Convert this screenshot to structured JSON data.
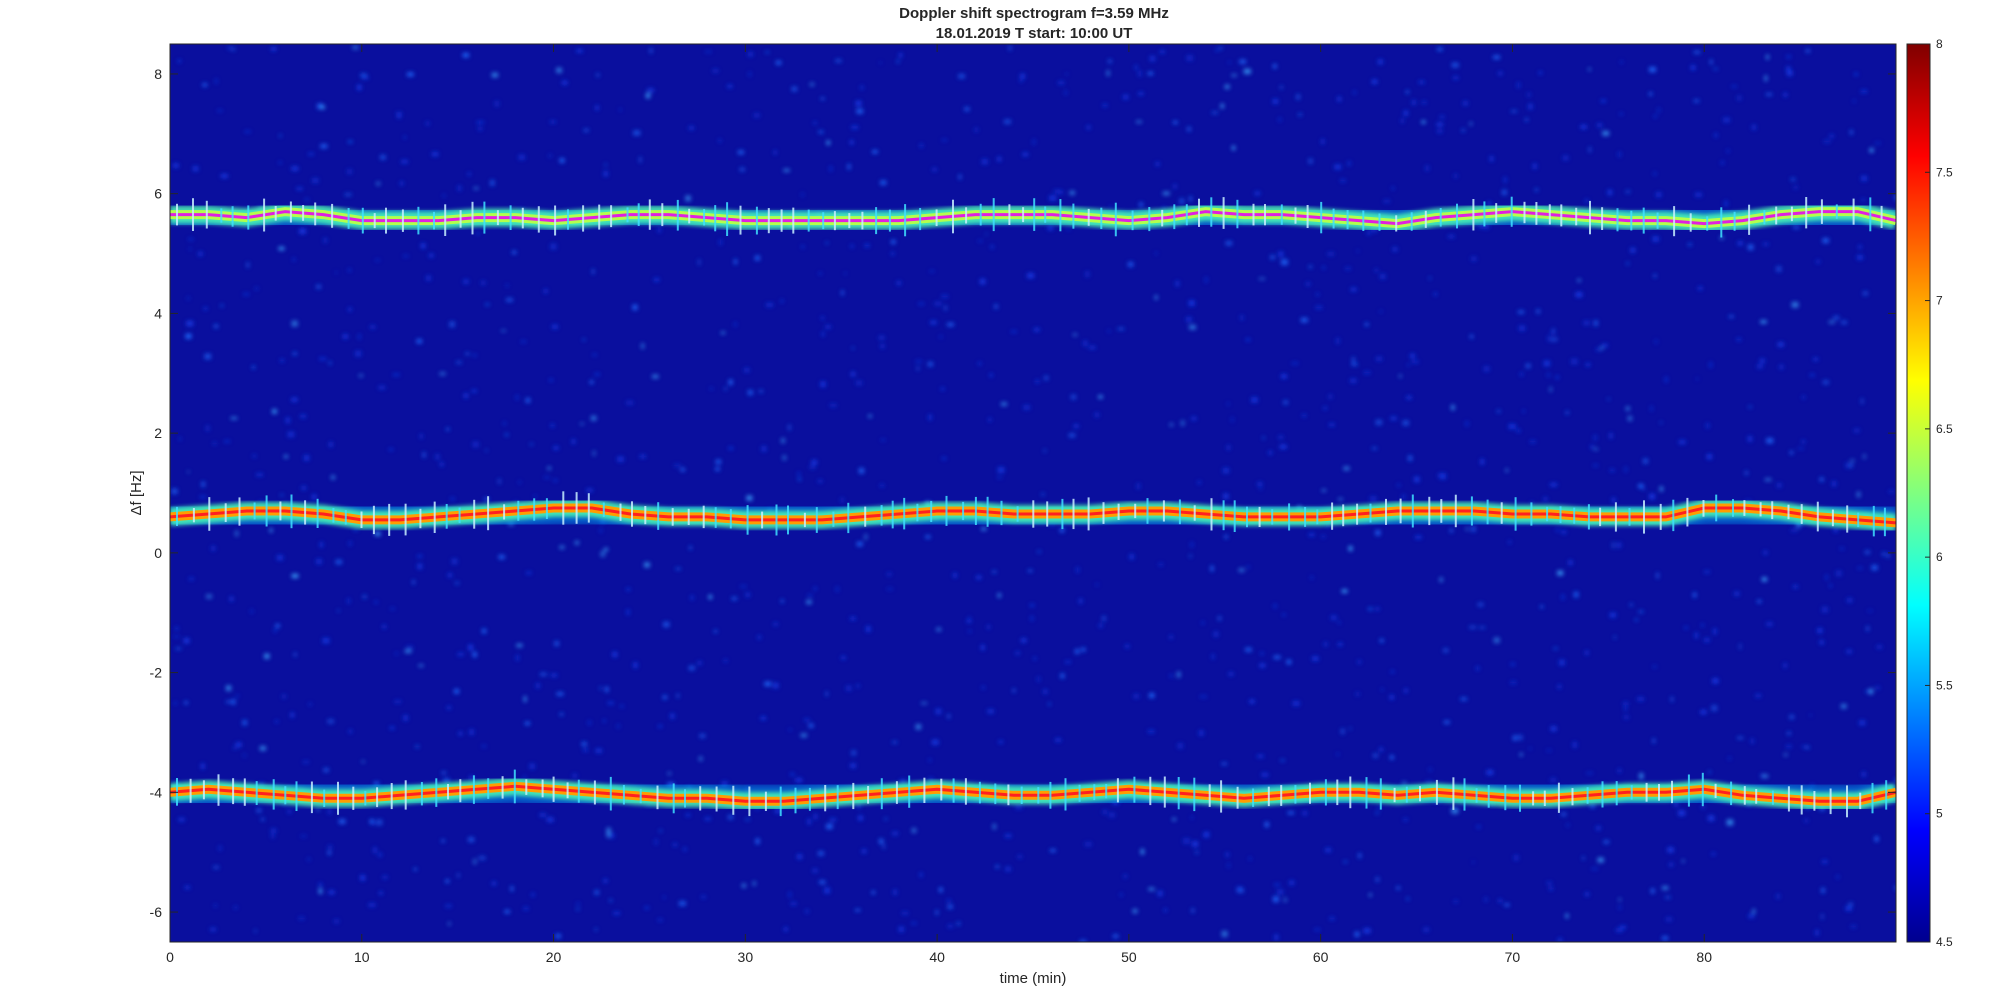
{
  "chart_data": {
    "type": "heatmap",
    "title": "Doppler shift spectrogram f=3.59 MHz",
    "subtitle": "18.01.2019   T start: 10:00 UT",
    "xlabel": "time (min)",
    "ylabel": "Δf [Hz]",
    "xlim": [
      0,
      90
    ],
    "ylim": [
      -6.5,
      8.5
    ],
    "x_ticks": [
      0,
      10,
      20,
      30,
      40,
      50,
      60,
      70,
      80
    ],
    "y_ticks": [
      -6,
      -4,
      -2,
      0,
      2,
      4,
      6,
      8
    ],
    "colorbar": {
      "colormap": "jet",
      "clim": [
        4.5,
        8
      ],
      "ticks": [
        "4.5",
        "5",
        "5.5",
        "6",
        "6.5",
        "7",
        "7.5",
        "8"
      ]
    },
    "background_color": "#0a0f9e",
    "traces": [
      {
        "x": [
          0,
          2,
          4,
          6,
          8,
          10,
          12,
          14,
          16,
          18,
          20,
          22,
          24,
          26,
          28,
          30,
          32,
          34,
          36,
          38,
          40,
          42,
          44,
          46,
          48,
          50,
          52,
          54,
          56,
          58,
          60,
          62,
          64,
          66,
          68,
          70,
          72,
          74,
          76,
          78,
          80,
          82,
          84,
          86,
          88,
          90
        ],
        "y": [
          5.65,
          5.65,
          5.6,
          5.7,
          5.65,
          5.55,
          5.55,
          5.55,
          5.6,
          5.6,
          5.55,
          5.6,
          5.65,
          5.65,
          5.6,
          5.55,
          5.55,
          5.55,
          5.55,
          5.55,
          5.6,
          5.65,
          5.65,
          5.65,
          5.6,
          5.55,
          5.6,
          5.7,
          5.65,
          5.65,
          5.6,
          5.55,
          5.5,
          5.6,
          5.65,
          5.7,
          5.65,
          5.6,
          5.55,
          5.55,
          5.5,
          5.55,
          5.65,
          5.7,
          5.7,
          5.55
        ],
        "peak_level": 6.9,
        "trace_line_color": "#e020e0"
      },
      {
        "x": [
          0,
          2,
          4,
          6,
          8,
          10,
          12,
          14,
          16,
          18,
          20,
          22,
          24,
          26,
          28,
          30,
          32,
          34,
          36,
          38,
          40,
          42,
          44,
          46,
          48,
          50,
          52,
          54,
          56,
          58,
          60,
          62,
          64,
          66,
          68,
          70,
          72,
          74,
          76,
          78,
          80,
          82,
          84,
          86,
          88,
          90
        ],
        "y": [
          0.6,
          0.65,
          0.7,
          0.7,
          0.65,
          0.55,
          0.55,
          0.6,
          0.65,
          0.7,
          0.75,
          0.75,
          0.65,
          0.6,
          0.6,
          0.55,
          0.55,
          0.55,
          0.6,
          0.65,
          0.7,
          0.7,
          0.65,
          0.65,
          0.65,
          0.7,
          0.7,
          0.65,
          0.6,
          0.6,
          0.6,
          0.65,
          0.7,
          0.7,
          0.7,
          0.65,
          0.65,
          0.6,
          0.6,
          0.6,
          0.75,
          0.75,
          0.7,
          0.6,
          0.55,
          0.5
        ],
        "peak_level": 7.9,
        "trace_line_color": "#ff2020"
      },
      {
        "x": [
          0,
          2,
          4,
          6,
          8,
          10,
          12,
          14,
          16,
          18,
          20,
          22,
          24,
          26,
          28,
          30,
          32,
          34,
          36,
          38,
          40,
          42,
          44,
          46,
          48,
          50,
          52,
          54,
          56,
          58,
          60,
          62,
          64,
          66,
          68,
          70,
          72,
          74,
          76,
          78,
          80,
          82,
          84,
          86,
          88,
          90
        ],
        "y": [
          -4.0,
          -3.95,
          -4.0,
          -4.05,
          -4.1,
          -4.1,
          -4.05,
          -4.0,
          -3.95,
          -3.9,
          -3.95,
          -4.0,
          -4.05,
          -4.1,
          -4.1,
          -4.15,
          -4.15,
          -4.1,
          -4.05,
          -4.0,
          -3.95,
          -4.0,
          -4.05,
          -4.05,
          -4.0,
          -3.95,
          -4.0,
          -4.05,
          -4.1,
          -4.05,
          -4.0,
          -4.0,
          -4.05,
          -4.0,
          -4.05,
          -4.1,
          -4.1,
          -4.05,
          -4.0,
          -4.0,
          -3.95,
          -4.05,
          -4.1,
          -4.15,
          -4.15,
          -4.0
        ],
        "peak_level": 7.9,
        "trace_line_color": "#ff2020"
      }
    ]
  }
}
